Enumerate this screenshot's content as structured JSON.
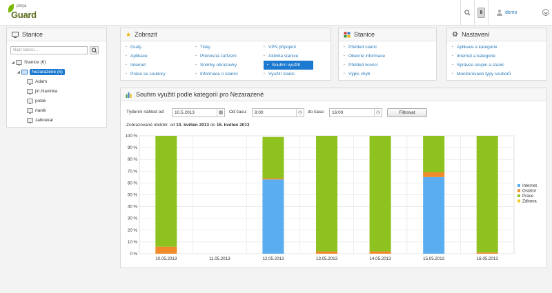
{
  "header": {
    "logo_top": "pinya",
    "logo_main": "Guard",
    "badge_count": "8",
    "user_name": "demo"
  },
  "stations_panel": {
    "title": "Stanice",
    "search_placeholder": "Najít stanici...",
    "tree": [
      {
        "label": "Stanice (6)",
        "level": 0,
        "type": "root"
      },
      {
        "label": "Nezarazené (5)",
        "level": 1,
        "type": "group",
        "selected": true
      },
      {
        "label": "Adam",
        "level": 2,
        "type": "pc"
      },
      {
        "label": "jiri.hlavinka",
        "level": 2,
        "type": "pc"
      },
      {
        "label": "polak",
        "level": 2,
        "type": "pc"
      },
      {
        "label": "rlanik",
        "level": 2,
        "type": "pc"
      },
      {
        "label": "zatloukal",
        "level": 2,
        "type": "pc"
      }
    ]
  },
  "zobrazit_panel": {
    "title": "Zobrazit",
    "col1": [
      "Grafy",
      "Aplikace",
      "Internet",
      "Práce se soubory"
    ],
    "col2": [
      "Tisky",
      "Přenosná zařízení",
      "Snímky obrazovky",
      "Informace o stanici"
    ],
    "col3": [
      "VPN připojení",
      "Aktivita stanice",
      "Souhrn využití",
      "Využití stanic"
    ],
    "active": "Souhrn využití"
  },
  "stanice_panel": {
    "title": "Stanice",
    "items": [
      "Přehled stanic",
      "Obecné informace",
      "Přehled licencí",
      "Výpis chyb"
    ]
  },
  "nastaveni_panel": {
    "title": "Nastavení",
    "items": [
      "Aplikace a kategorie",
      "Internet a kategorie",
      "Správce skupin a stanic",
      "Monitorované typy souborů"
    ]
  },
  "summary_panel": {
    "title": "Souhrn využití podle kategorií pro Nezarazené",
    "week_label": "Týdenní náhled od:",
    "week_value": "10.5.2013",
    "from_label": "Od času:",
    "from_value": "8:00",
    "to_label": "do času:",
    "to_value": "16:00",
    "filter_button": "Filtrovat",
    "period_prefix": "Zobrazované období: od",
    "period_from": "10. květen 2013",
    "period_mid": "do",
    "period_to": "16. květen 2013"
  },
  "chart_data": {
    "type": "bar",
    "stacked": true,
    "categories": [
      "10.05.2013",
      "11.05.2013",
      "12.05.2013",
      "13.05.2013",
      "14.05.2013",
      "15.05.2013",
      "16.05.2013"
    ],
    "series": [
      {
        "name": "Internet",
        "color": "#5aaef0",
        "values": [
          0,
          0,
          63,
          0,
          0,
          65,
          0
        ]
      },
      {
        "name": "Ostatní",
        "color": "#f08a2b",
        "values": [
          6,
          0,
          1,
          2,
          2,
          4,
          1
        ]
      },
      {
        "name": "Práce",
        "color": "#8dc21f",
        "values": [
          94,
          0,
          35,
          98,
          98,
          31,
          99
        ]
      },
      {
        "name": "Zábava",
        "color": "#f2c81f",
        "values": [
          0,
          0,
          0,
          0,
          0,
          0,
          0
        ]
      }
    ],
    "ylim": [
      0,
      100
    ],
    "yticks": [
      "0 %",
      "10 %",
      "20 %",
      "30 %",
      "40 %",
      "50 %",
      "60 %",
      "70 %",
      "80 %",
      "90 %",
      "100 %"
    ],
    "legend_position": "right",
    "grid": true
  }
}
